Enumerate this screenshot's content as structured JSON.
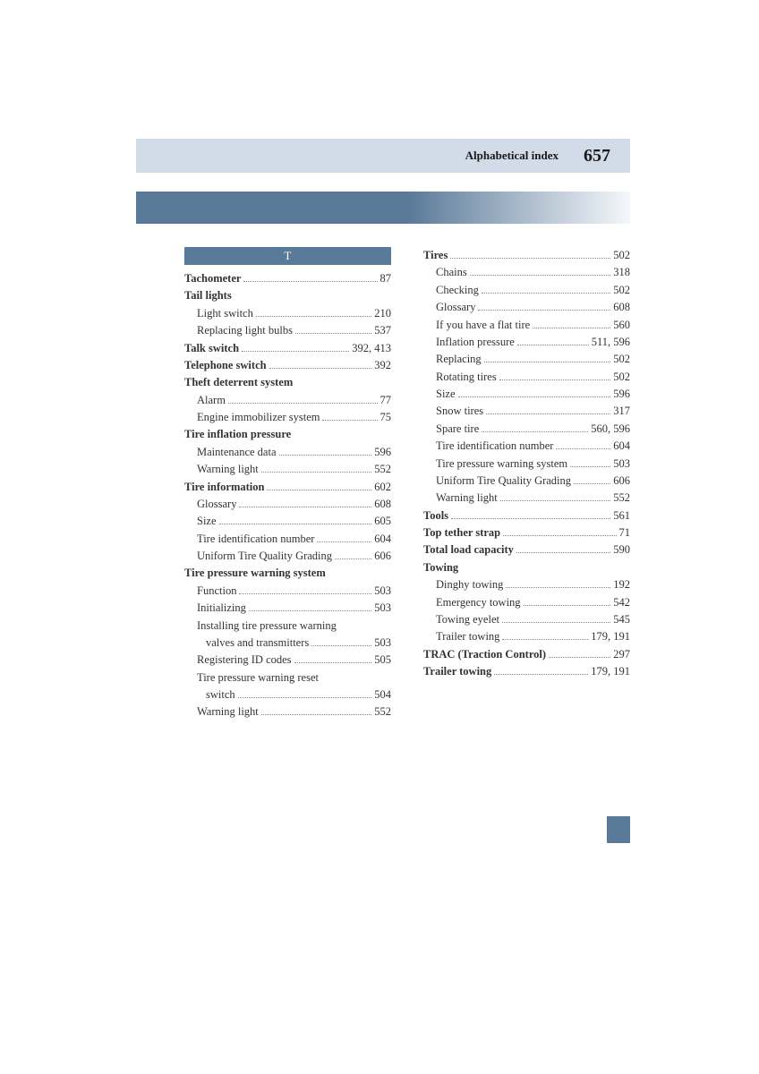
{
  "header": {
    "title": "Alphabetical index",
    "page_number": "657"
  },
  "section_letter": "T",
  "colors": {
    "header_bg": "#d2dce8",
    "accent": "#5a7a99",
    "text": "#333333"
  },
  "left_col": [
    {
      "label": "Tachometer",
      "pages": "87",
      "bold": true
    },
    {
      "label": "Tail lights",
      "pages": "",
      "bold": true,
      "nopage": true
    },
    {
      "label": "Light switch",
      "pages": "210",
      "sub": true
    },
    {
      "label": "Replacing light bulbs",
      "pages": "537",
      "sub": true
    },
    {
      "label": "Talk switch",
      "pages": "392, 413",
      "bold": true
    },
    {
      "label": "Telephone switch",
      "pages": "392",
      "bold": true
    },
    {
      "label": "Theft deterrent system",
      "pages": "",
      "bold": true,
      "nopage": true
    },
    {
      "label": "Alarm",
      "pages": "77",
      "sub": true
    },
    {
      "label": "Engine immobilizer system",
      "pages": "75",
      "sub": true
    },
    {
      "label": "Tire inflation pressure",
      "pages": "",
      "bold": true,
      "nopage": true
    },
    {
      "label": "Maintenance data",
      "pages": "596",
      "sub": true
    },
    {
      "label": "Warning light",
      "pages": "552",
      "sub": true
    },
    {
      "label": "Tire information",
      "pages": "602",
      "bold": true
    },
    {
      "label": "Glossary",
      "pages": "608",
      "sub": true
    },
    {
      "label": "Size",
      "pages": "605",
      "sub": true
    },
    {
      "label": "Tire identification number",
      "pages": "604",
      "sub": true
    },
    {
      "label": "Uniform Tire Quality Grading",
      "pages": "606",
      "sub": true
    },
    {
      "label": "Tire pressure warning system",
      "pages": "",
      "bold": true,
      "nopage": true
    },
    {
      "label": "Function",
      "pages": "503",
      "sub": true
    },
    {
      "label": "Initializing",
      "pages": "503",
      "sub": true
    },
    {
      "label": "Installing tire pressure warning",
      "pages": "",
      "sub": true,
      "nopage": true
    },
    {
      "label": "valves and transmitters",
      "pages": "503",
      "sub2": true
    },
    {
      "label": "Registering ID codes",
      "pages": "505",
      "sub": true
    },
    {
      "label": "Tire pressure warning reset",
      "pages": "",
      "sub": true,
      "nopage": true
    },
    {
      "label": "switch",
      "pages": "504",
      "sub2": true
    },
    {
      "label": "Warning light",
      "pages": "552",
      "sub": true
    }
  ],
  "right_col": [
    {
      "label": "Tires",
      "pages": "502",
      "bold": true
    },
    {
      "label": "Chains",
      "pages": "318",
      "sub": true
    },
    {
      "label": "Checking",
      "pages": "502",
      "sub": true
    },
    {
      "label": "Glossary",
      "pages": "608",
      "sub": true
    },
    {
      "label": "If you have a flat tire",
      "pages": "560",
      "sub": true
    },
    {
      "label": "Inflation pressure",
      "pages": "511, 596",
      "sub": true
    },
    {
      "label": "Replacing",
      "pages": "502",
      "sub": true
    },
    {
      "label": "Rotating tires",
      "pages": "502",
      "sub": true
    },
    {
      "label": "Size",
      "pages": "596",
      "sub": true
    },
    {
      "label": "Snow tires",
      "pages": "317",
      "sub": true
    },
    {
      "label": "Spare tire",
      "pages": "560, 596",
      "sub": true
    },
    {
      "label": "Tire identification number",
      "pages": "604",
      "sub": true
    },
    {
      "label": "Tire pressure warning system",
      "pages": "503",
      "sub": true
    },
    {
      "label": "Uniform Tire Quality Grading",
      "pages": "606",
      "sub": true
    },
    {
      "label": "Warning light",
      "pages": "552",
      "sub": true
    },
    {
      "label": "Tools",
      "pages": "561",
      "bold": true
    },
    {
      "label": "Top tether strap",
      "pages": "71",
      "bold": true
    },
    {
      "label": "Total load capacity",
      "pages": "590",
      "bold": true
    },
    {
      "label": "Towing",
      "pages": "",
      "bold": true,
      "nopage": true
    },
    {
      "label": "Dinghy towing",
      "pages": "192",
      "sub": true
    },
    {
      "label": "Emergency towing",
      "pages": "542",
      "sub": true
    },
    {
      "label": "Towing eyelet",
      "pages": "545",
      "sub": true
    },
    {
      "label": "Trailer towing",
      "pages": "179, 191",
      "sub": true
    },
    {
      "label": "TRAC (Traction Control)",
      "pages": "297",
      "bold": true
    },
    {
      "label": "Trailer towing",
      "pages": "179, 191",
      "bold": true
    }
  ]
}
